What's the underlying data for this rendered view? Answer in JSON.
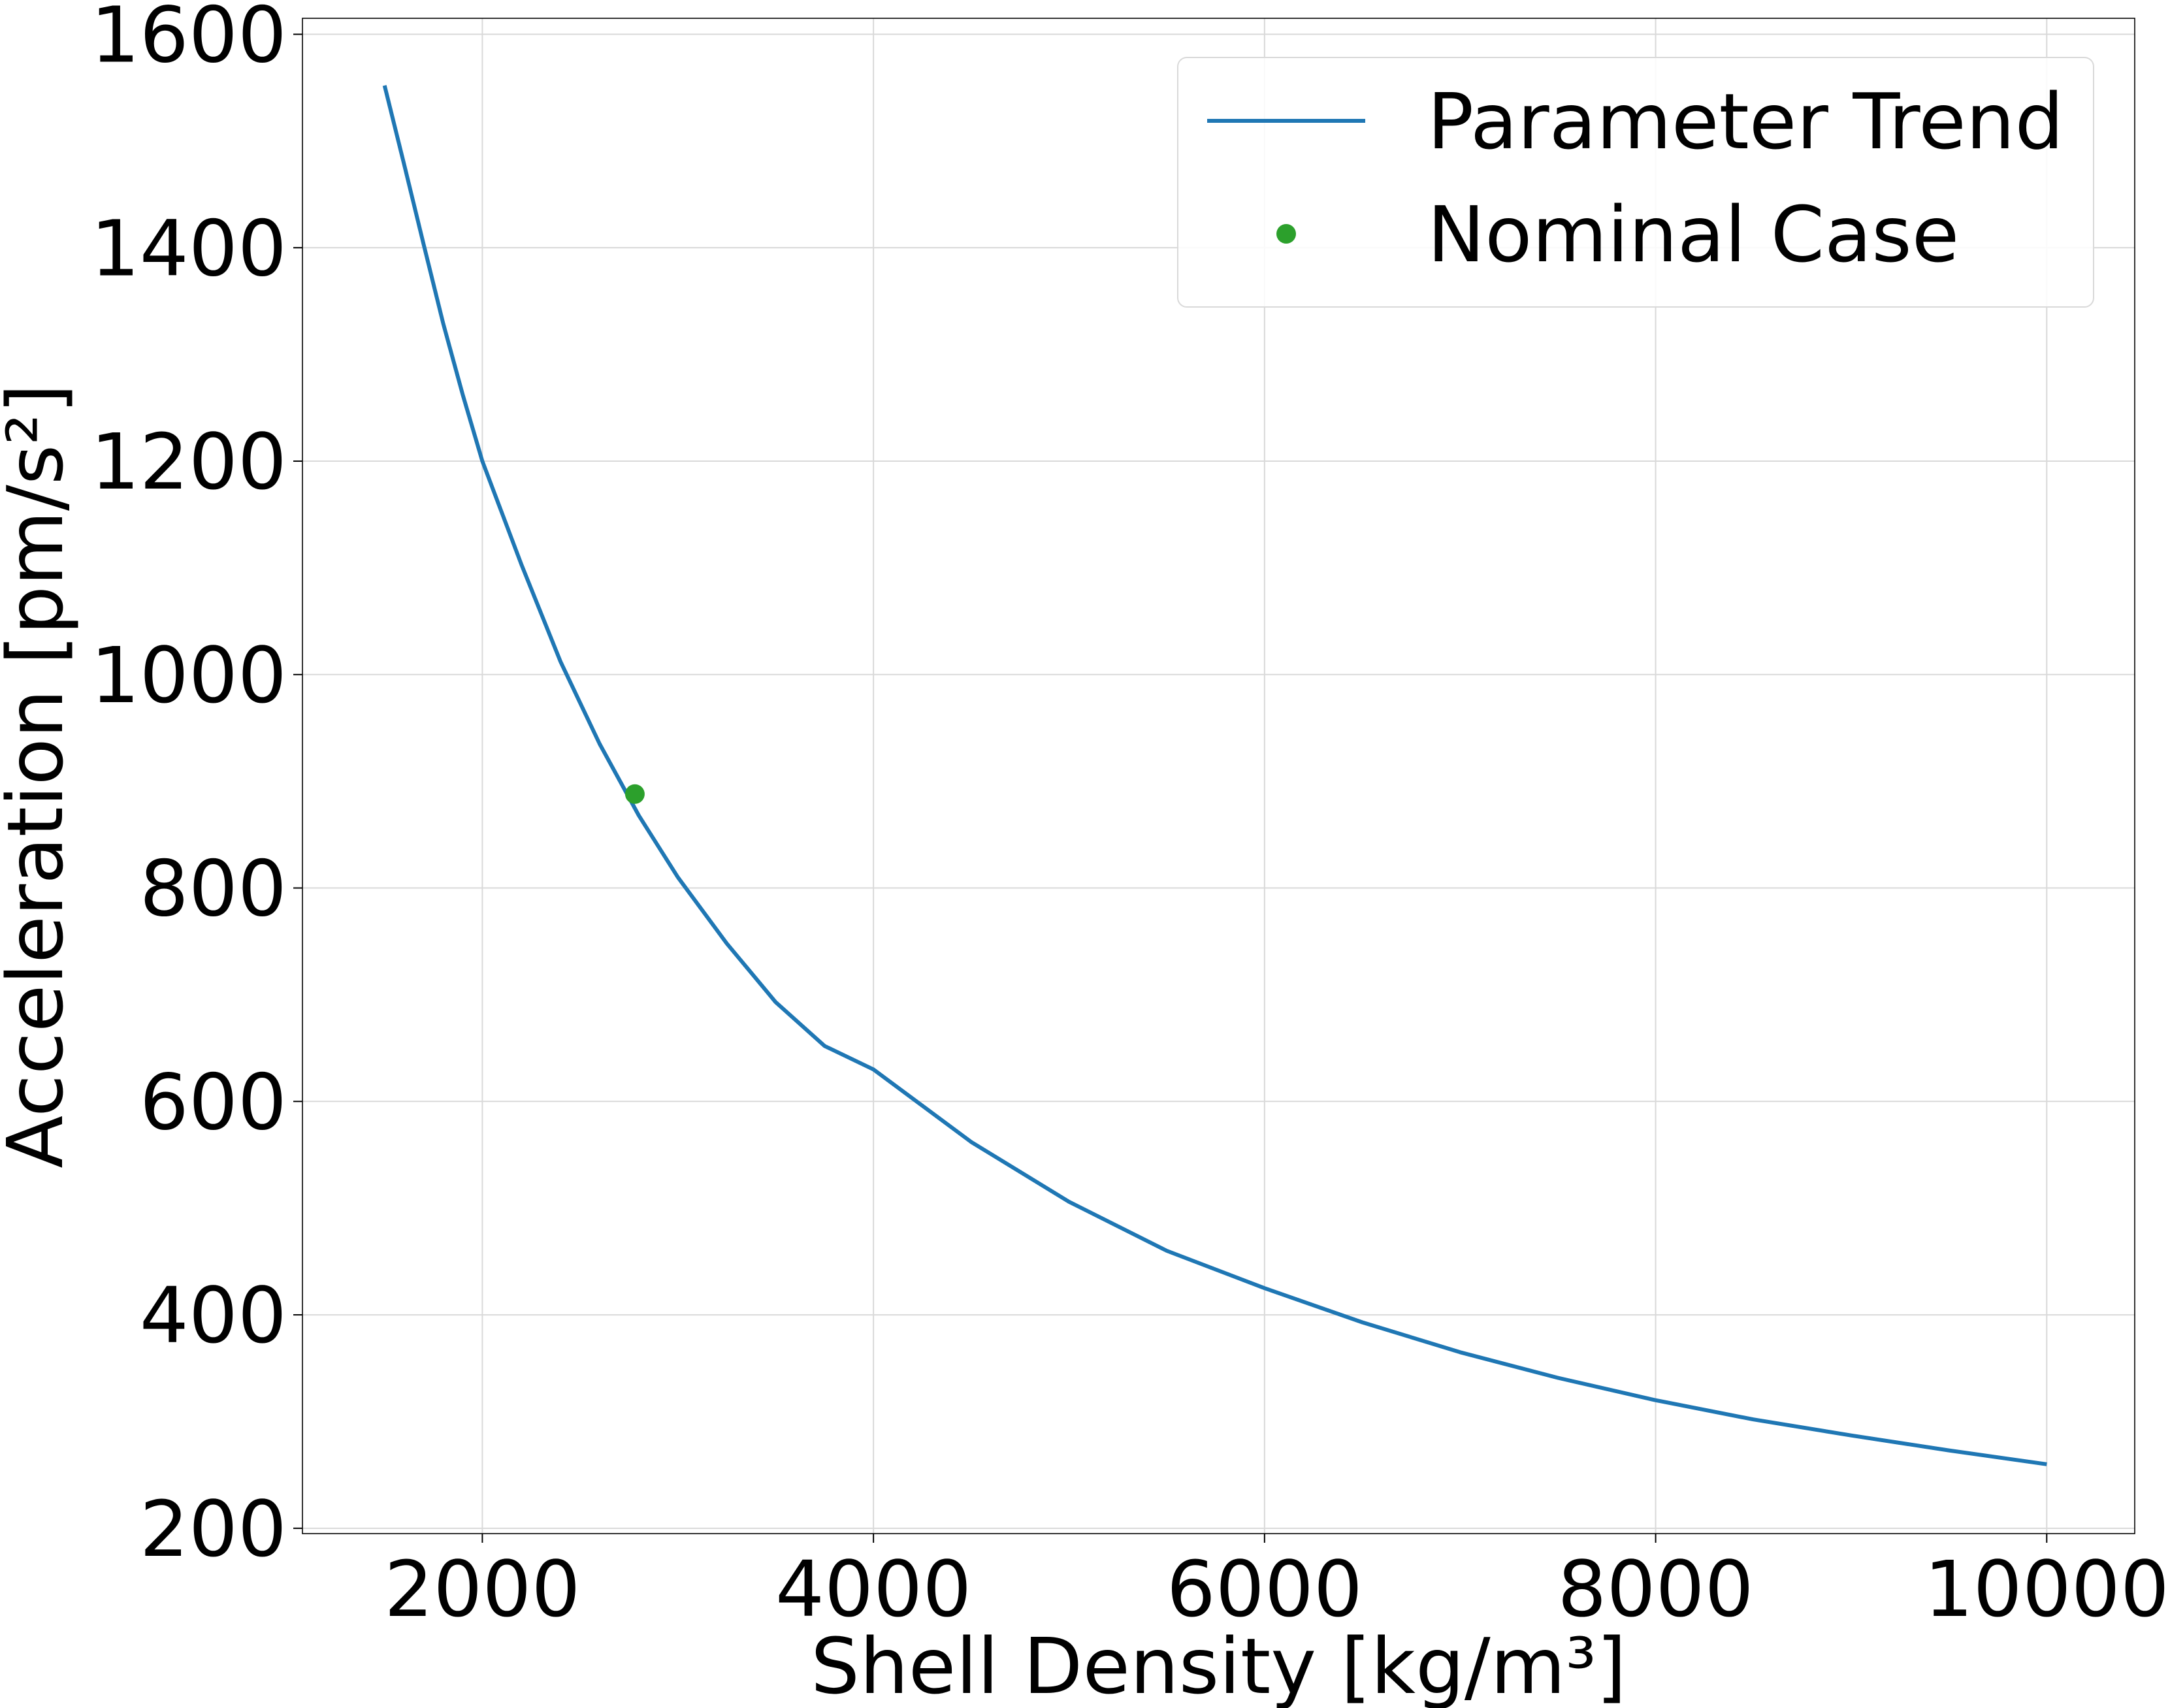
{
  "chart_data": {
    "type": "line",
    "xlabel": "Shell Density [kg/m³]",
    "ylabel": "Acceleration [pm/s²]",
    "xlim": [
      1080,
      10450
    ],
    "ylim": [
      195,
      1615
    ],
    "xticks": [
      2000,
      4000,
      6000,
      8000,
      10000
    ],
    "yticks": [
      200,
      400,
      600,
      800,
      1000,
      1200,
      1400,
      1600
    ],
    "grid": true,
    "legend_position": "top-right",
    "series": [
      {
        "name": "Parameter Trend",
        "kind": "line",
        "color": "#1f77b4",
        "x": [
          1500,
          1600,
          1700,
          1800,
          1900,
          2000,
          2200,
          2400,
          2600,
          2800,
          3000,
          3250,
          3500,
          3750,
          4000,
          4500,
          5000,
          5500,
          6000,
          6500,
          7000,
          7500,
          8000,
          8500,
          9000,
          9500,
          10000
        ],
        "y": [
          1552,
          1478,
          1403,
          1329,
          1262,
          1200,
          1103,
          1012,
          935,
          868,
          810,
          748,
          693,
          652,
          630,
          562,
          506,
          460,
          425,
          393,
          365,
          341,
          320,
          302,
          287,
          273,
          260
        ]
      },
      {
        "name": "Nominal Case",
        "kind": "scatter",
        "color": "#2ca02c",
        "x": [
          2780
        ],
        "y": [
          888
        ]
      }
    ]
  }
}
